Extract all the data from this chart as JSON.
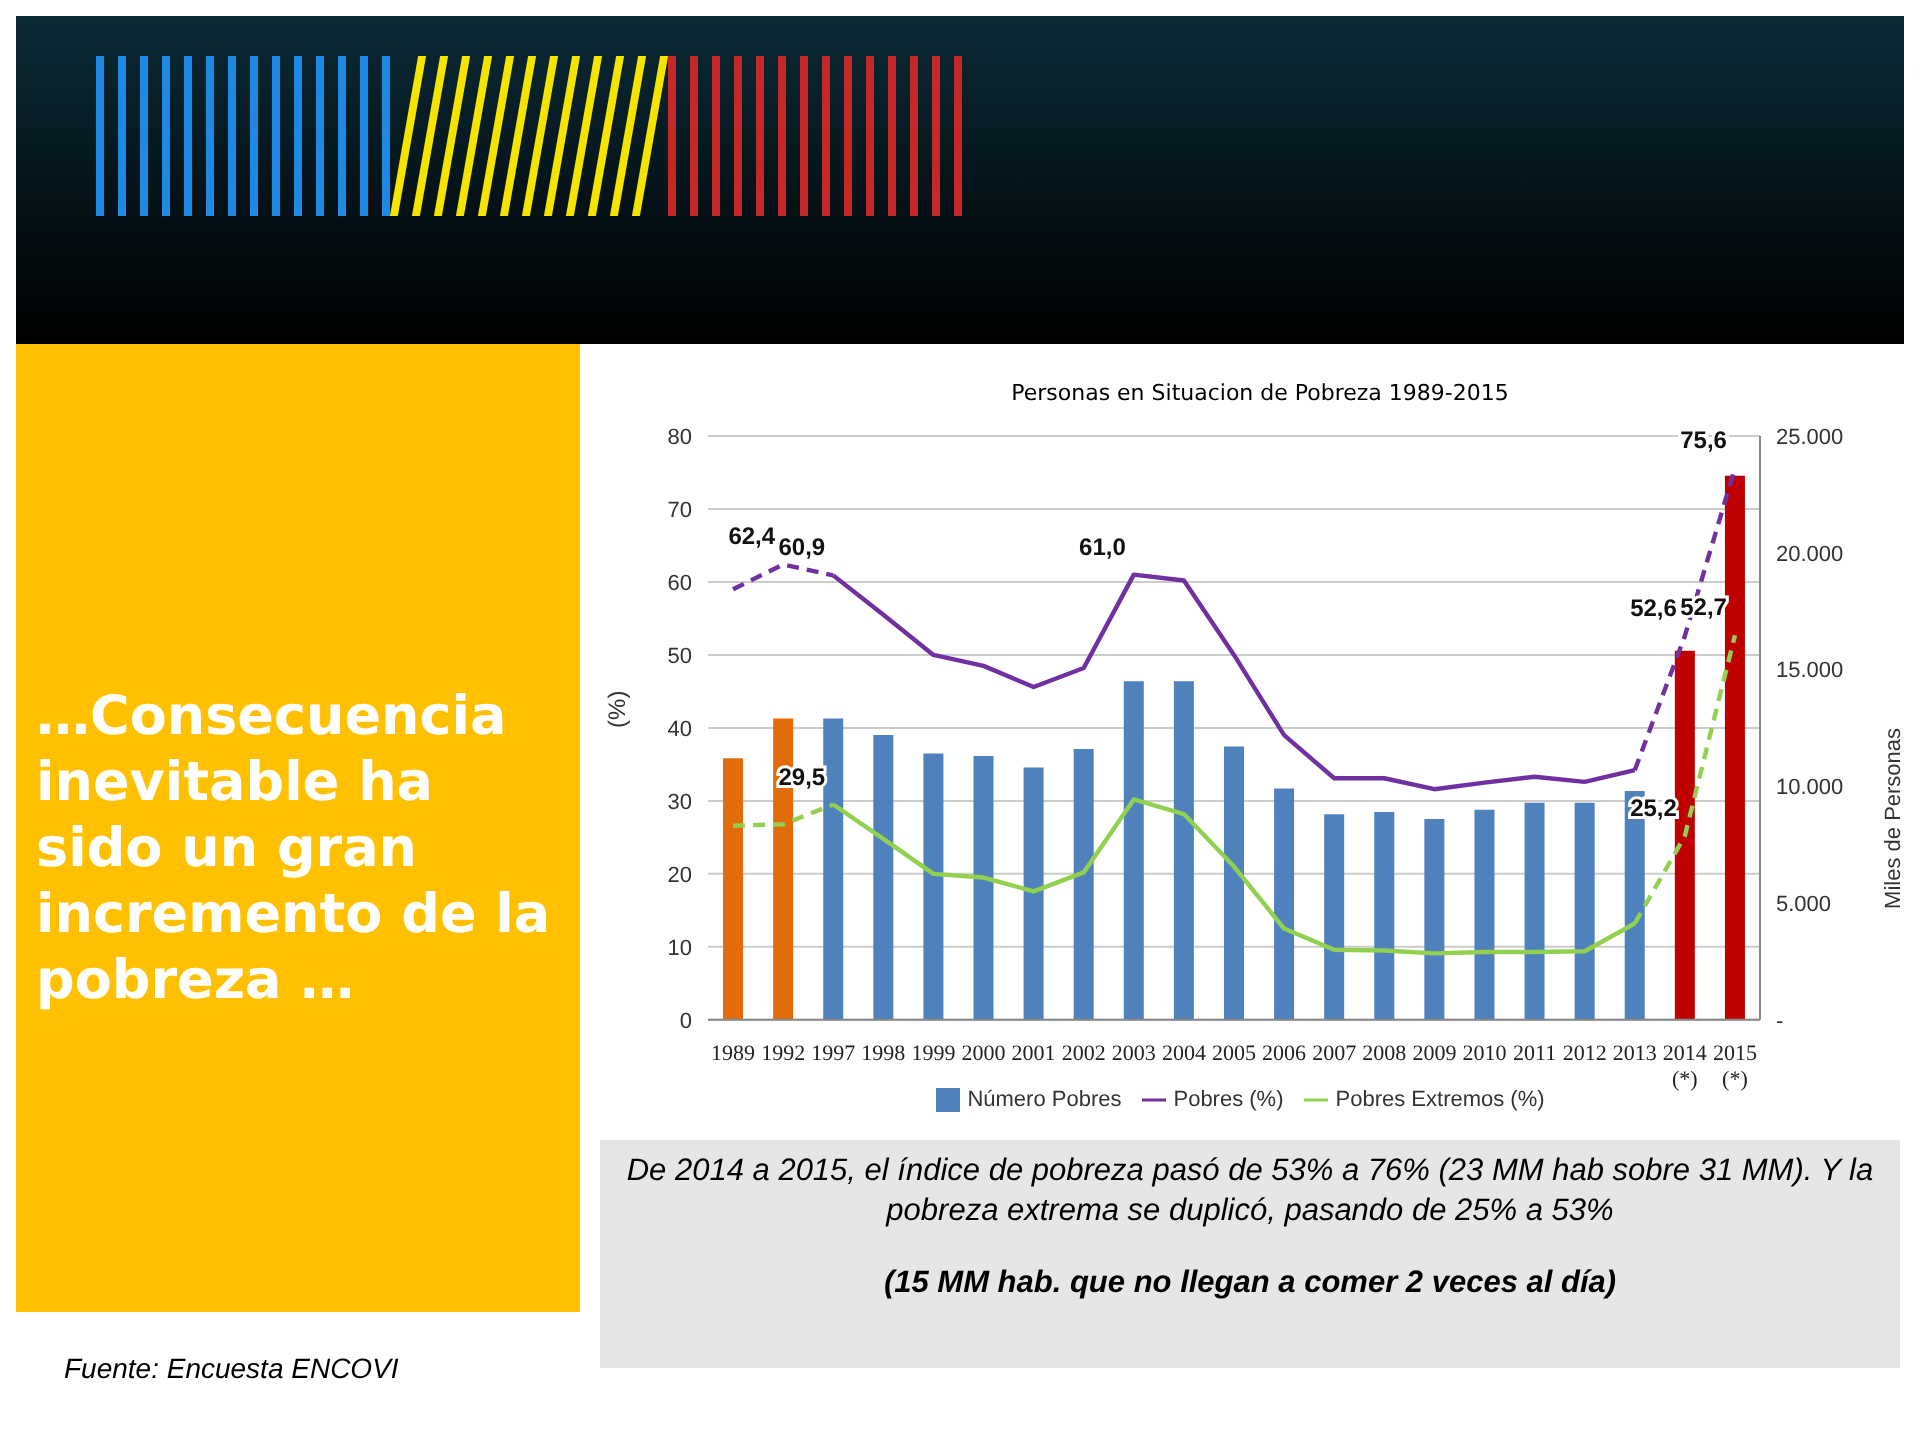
{
  "chart_data": {
    "type": "bar",
    "title": "Personas en Situacion de Pobreza 1989-2015",
    "ylabel": "(%)",
    "y2label": "Miles de Personas",
    "categories": [
      "1989",
      "1992",
      "1997",
      "1998",
      "1999",
      "2000",
      "2001",
      "2002",
      "2003",
      "2004",
      "2005",
      "2006",
      "2007",
      "2008",
      "2009",
      "2010",
      "2011",
      "2012",
      "2013",
      "2014\n(*)",
      "2015\n(*)"
    ],
    "series": [
      {
        "name": "Número Pobres",
        "axis": "y2",
        "color": "#4f81bd",
        "colors": [
          "#e36c0a",
          "#e36c0a",
          "#4f81bd",
          "#4f81bd",
          "#4f81bd",
          "#4f81bd",
          "#4f81bd",
          "#4f81bd",
          "#4f81bd",
          "#4f81bd",
          "#4f81bd",
          "#4f81bd",
          "#4f81bd",
          "#4f81bd",
          "#4f81bd",
          "#4f81bd",
          "#4f81bd",
          "#4f81bd",
          "#4f81bd",
          "#c00000",
          "#c00000"
        ],
        "values": [
          11200,
          12900,
          12900,
          12200,
          11400,
          11300,
          10800,
          11600,
          14500,
          14500,
          11700,
          9900,
          8800,
          8900,
          8600,
          9000,
          9300,
          9300,
          9800,
          15800,
          23300
        ]
      },
      {
        "name": "Pobres (%)",
        "type": "line",
        "color": "#7030a0",
        "line_style": "solid",
        "values": [
          null,
          null,
          60.9,
          55.5,
          50.0,
          48.5,
          45.6,
          48.2,
          61.0,
          60.2,
          50.0,
          39.0,
          33.1,
          33.1,
          31.6,
          32.5,
          33.3,
          32.6,
          34.2,
          null,
          null
        ],
        "value_labels": [
          null,
          null,
          "60,9",
          null,
          null,
          null,
          null,
          null,
          "61,0",
          null,
          null,
          null,
          null,
          null,
          null,
          null,
          null,
          null,
          null,
          null,
          null
        ]
      },
      {
        "type": "line",
        "color": "#7030a0",
        "line_style": "dashed",
        "values": [
          59.0,
          62.4,
          60.9,
          null,
          null,
          null,
          null,
          null,
          null,
          null,
          null,
          null,
          null,
          null,
          null,
          null,
          null,
          null,
          34.2,
          52.6,
          75.6
        ],
        "value_labels": [
          null,
          "62,4",
          null,
          null,
          null,
          null,
          null,
          null,
          null,
          null,
          null,
          null,
          null,
          null,
          null,
          null,
          null,
          null,
          null,
          "52,6",
          "75,6"
        ]
      },
      {
        "name": "Pobres Extremos (%)",
        "type": "line",
        "color": "#92d050",
        "line_style": "solid",
        "values": [
          null,
          null,
          29.5,
          24.8,
          20.0,
          19.5,
          17.6,
          20.2,
          30.2,
          28.2,
          21.0,
          12.5,
          9.6,
          9.5,
          9.1,
          9.3,
          9.3,
          9.4,
          13.2,
          null,
          null
        ],
        "value_labels": [
          null,
          null,
          "29,5",
          null,
          null,
          null,
          null,
          null,
          null,
          null,
          null,
          null,
          null,
          null,
          null,
          null,
          null,
          null,
          null,
          null,
          null
        ]
      },
      {
        "type": "line",
        "color": "#92d050",
        "line_style": "dashed",
        "values": [
          26.6,
          26.8,
          29.5,
          null,
          null,
          null,
          null,
          null,
          null,
          null,
          null,
          null,
          null,
          null,
          null,
          null,
          null,
          null,
          13.2,
          25.2,
          52.7
        ],
        "value_labels": [
          null,
          null,
          null,
          null,
          null,
          null,
          null,
          null,
          null,
          null,
          null,
          null,
          null,
          null,
          null,
          null,
          null,
          null,
          null,
          "25,2",
          "52,7"
        ]
      }
    ],
    "ylim": [
      0,
      80
    ],
    "yticks": [
      0,
      10,
      20,
      30,
      40,
      50,
      60,
      70,
      80
    ],
    "y2lim": [
      0,
      25000
    ],
    "y2ticks": [
      {
        "value": 0,
        "label": "-"
      },
      {
        "value": 5000,
        "label": "5.000"
      },
      {
        "value": 10000,
        "label": "10.000"
      },
      {
        "value": 15000,
        "label": "15.000"
      },
      {
        "value": 20000,
        "label": "20.000"
      },
      {
        "value": 25000,
        "label": "25.000"
      }
    ],
    "grid": "y",
    "legend": "bottom",
    "marker": "none",
    "annotations": [
      "…Consecuencia inevitable ha sido un gran incremento de la pobreza …",
      "De 2014 a 2015, el índice de pobreza pasó de 53% a 76% (23 MM hab sobre 31 MM).  Y la pobreza extrema se duplicó, pasando de 25% a 53%",
      "(15 MM hab. que no llegan a comer 2 veces al día)",
      "Fuente:  Encuesta ENCOVI"
    ]
  }
}
